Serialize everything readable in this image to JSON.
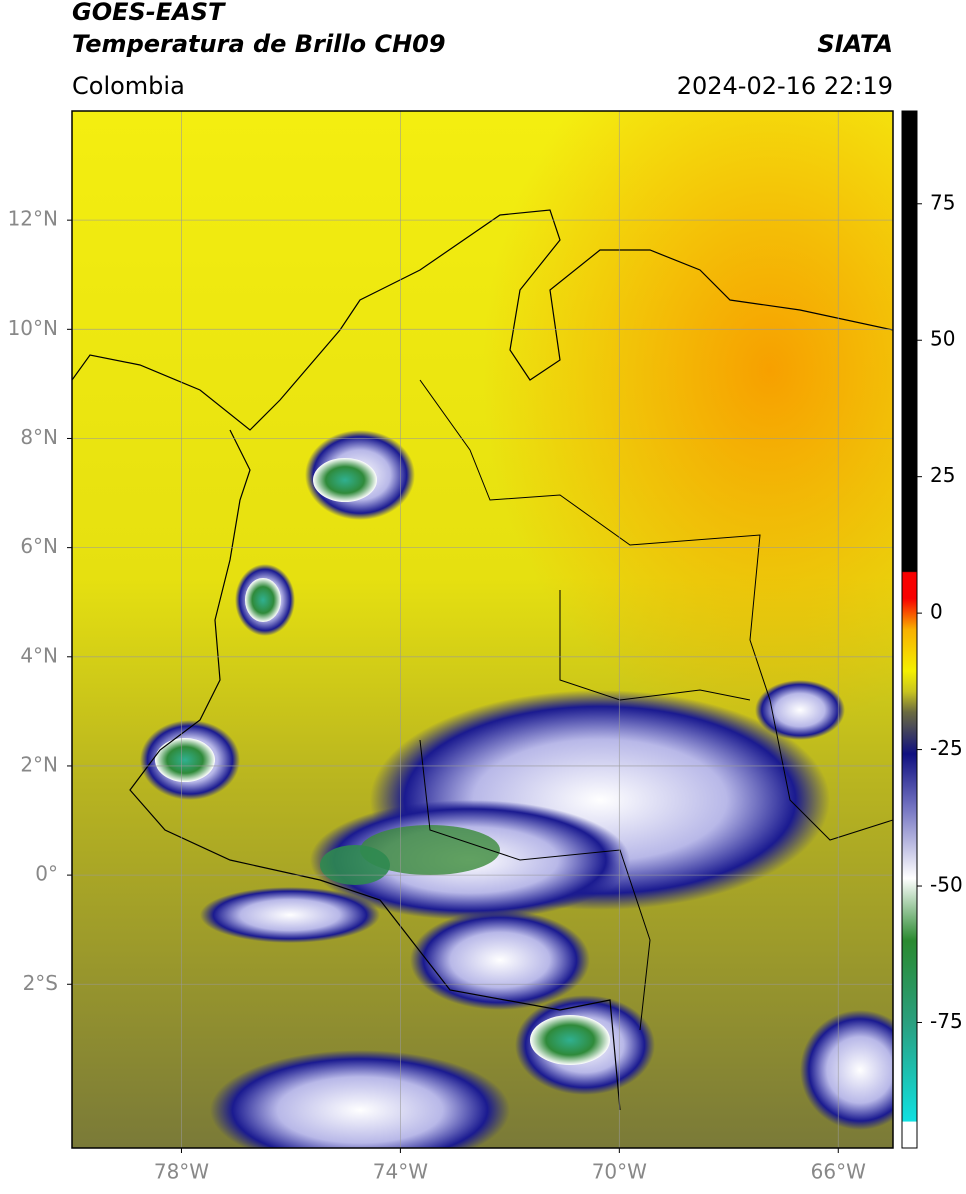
{
  "header": {
    "title": "GOES-EAST",
    "subtitle": "Temperatura de Brillo CH09",
    "source": "SIATA",
    "region": "Colombia",
    "datetime": "2024-02-16 22:19"
  },
  "map": {
    "lonlim": [
      -80,
      -65
    ],
    "latlim": [
      -5,
      14
    ],
    "lon_ticks": [
      {
        "value": -78,
        "label": "78°W"
      },
      {
        "value": -74,
        "label": "74°W"
      },
      {
        "value": -70,
        "label": "70°W"
      },
      {
        "value": -66,
        "label": "66°W"
      }
    ],
    "lat_ticks": [
      {
        "value": 12,
        "label": "12°N"
      },
      {
        "value": 10,
        "label": "10°N"
      },
      {
        "value": 8,
        "label": "8°N"
      },
      {
        "value": 6,
        "label": "6°N"
      },
      {
        "value": 4,
        "label": "4°N"
      },
      {
        "value": 2,
        "label": "2°N"
      },
      {
        "value": 0,
        "label": "0°"
      },
      {
        "value": -2,
        "label": "2°S"
      }
    ],
    "grid": true
  },
  "colorbar": {
    "lim": [
      -98,
      92
    ],
    "ticks": [
      75,
      50,
      25,
      0,
      -25,
      -50,
      -75
    ]
  }
}
